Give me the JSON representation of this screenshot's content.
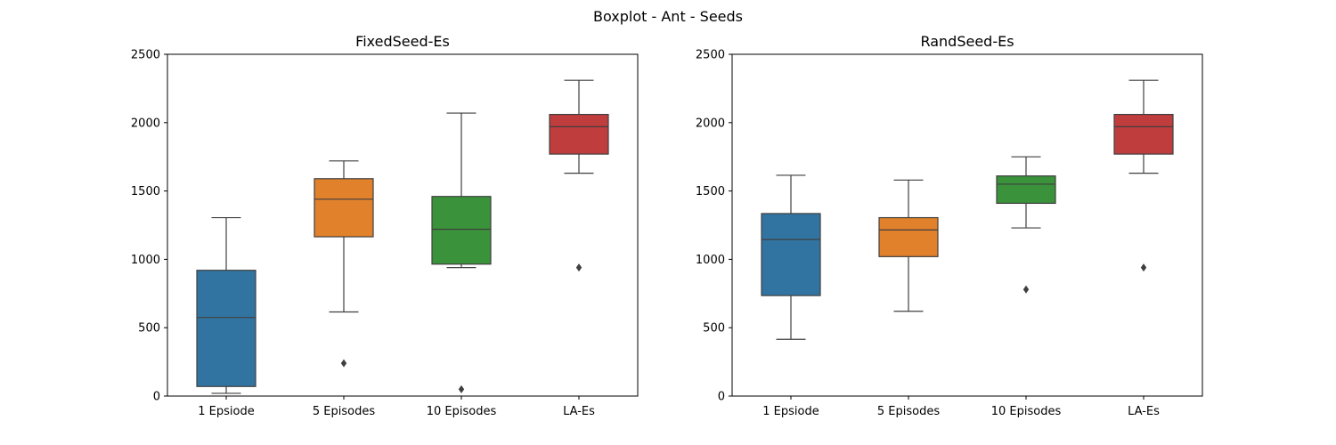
{
  "suptitle": "Boxplot - Ant - Seeds",
  "chart_data": [
    {
      "type": "boxplot",
      "title": "FixedSeed-Es",
      "xlabel": "",
      "ylabel": "",
      "ylim": [
        0,
        2500
      ],
      "yticks": [
        0,
        500,
        1000,
        1500,
        2000,
        2500
      ],
      "categories": [
        "1 Epsiode",
        "5 Episodes",
        "10 Episodes",
        "LA-Es"
      ],
      "colors": [
        "#3274a1",
        "#e1812c",
        "#3a923a",
        "#c03d3e"
      ],
      "boxes": [
        {
          "whislo": 20,
          "q1": 70,
          "med": 575,
          "q3": 920,
          "whishi": 1305,
          "fliers": []
        },
        {
          "whislo": 615,
          "q1": 1165,
          "med": 1440,
          "q3": 1590,
          "whishi": 1720,
          "fliers": [
            240
          ]
        },
        {
          "whislo": 940,
          "q1": 965,
          "med": 1220,
          "q3": 1460,
          "whishi": 2070,
          "fliers": [
            50
          ]
        },
        {
          "whislo": 1630,
          "q1": 1770,
          "med": 1970,
          "q3": 2060,
          "whishi": 2310,
          "fliers": [
            940
          ]
        }
      ]
    },
    {
      "type": "boxplot",
      "title": "RandSeed-Es",
      "xlabel": "",
      "ylabel": "",
      "ylim": [
        0,
        2500
      ],
      "yticks": [
        0,
        500,
        1000,
        1500,
        2000,
        2500
      ],
      "categories": [
        "1 Epsiode",
        "5 Episodes",
        "10 Episodes",
        "LA-Es"
      ],
      "colors": [
        "#3274a1",
        "#e1812c",
        "#3a923a",
        "#c03d3e"
      ],
      "boxes": [
        {
          "whislo": 415,
          "q1": 735,
          "med": 1145,
          "q3": 1335,
          "whishi": 1615,
          "fliers": []
        },
        {
          "whislo": 620,
          "q1": 1020,
          "med": 1215,
          "q3": 1305,
          "whishi": 1580,
          "fliers": []
        },
        {
          "whislo": 1230,
          "q1": 1410,
          "med": 1550,
          "q3": 1610,
          "whishi": 1750,
          "fliers": [
            780
          ]
        },
        {
          "whislo": 1630,
          "q1": 1770,
          "med": 1970,
          "q3": 2060,
          "whishi": 2310,
          "fliers": [
            940
          ]
        }
      ]
    }
  ]
}
